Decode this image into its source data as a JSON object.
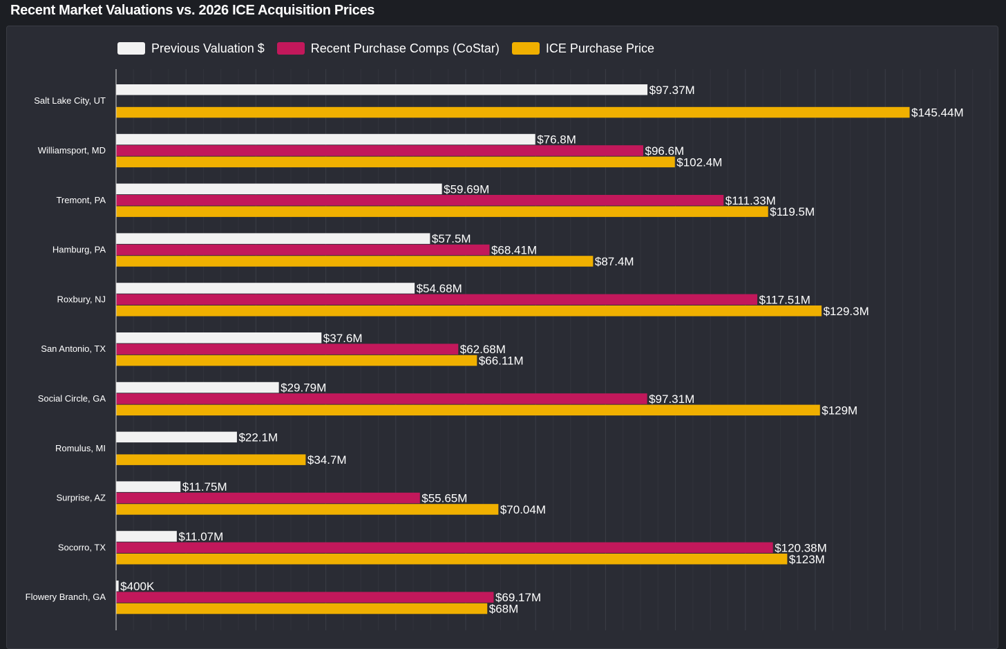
{
  "title": "Recent Market Valuations vs. 2026 ICE Acquisition Prices",
  "chart_data": {
    "type": "bar",
    "orientation": "horizontal",
    "title": "Recent Market Valuations vs. 2026 ICE Acquisition Prices",
    "xlabel": "",
    "ylabel": "",
    "xlim": [
      0,
      150
    ],
    "grid": true,
    "legend_position": "top",
    "categories": [
      "Salt Lake City, UT",
      "Williamsport, MD",
      "Tremont, PA",
      "Hamburg, PA",
      "Roxbury, NJ",
      "San Antonio, TX",
      "Social Circle, GA",
      "Romulus, MI",
      "Surprise, AZ",
      "Socorro, TX",
      "Flowery Branch, GA"
    ],
    "series": [
      {
        "name": "Previous Valuation $",
        "color": "#f2f2f2",
        "values": [
          97.37,
          76.8,
          59.69,
          57.5,
          54.68,
          37.6,
          29.79,
          22.1,
          11.75,
          11.07,
          0.4
        ],
        "labels": [
          "$97.37M",
          "$76.8M",
          "$59.69M",
          "$57.5M",
          "$54.68M",
          "$37.6M",
          "$29.79M",
          "$22.1M",
          "$11.75M",
          "$11.07M",
          "$400K"
        ]
      },
      {
        "name": "Recent Purchase Comps (CoStar)",
        "color": "#c2185b",
        "values": [
          null,
          96.6,
          111.33,
          68.41,
          117.51,
          62.68,
          97.31,
          null,
          55.65,
          120.38,
          69.17
        ],
        "labels": [
          null,
          "$96.6M",
          "$111.33M",
          "$68.41M",
          "$117.51M",
          "$62.68M",
          "$97.31M",
          null,
          "$55.65M",
          "$120.38M",
          "$69.17M"
        ]
      },
      {
        "name": "ICE Purchase Price",
        "color": "#f0b000",
        "values": [
          145.44,
          102.4,
          119.5,
          87.4,
          129.3,
          66.11,
          129,
          34.7,
          70.04,
          123,
          68
        ],
        "labels": [
          "$145.44M",
          "$102.4M",
          "$119.5M",
          "$87.4M",
          "$129.3M",
          "$66.11M",
          "$129M",
          "$34.7M",
          "$70.04M",
          "$123M",
          "$68M"
        ]
      }
    ]
  }
}
